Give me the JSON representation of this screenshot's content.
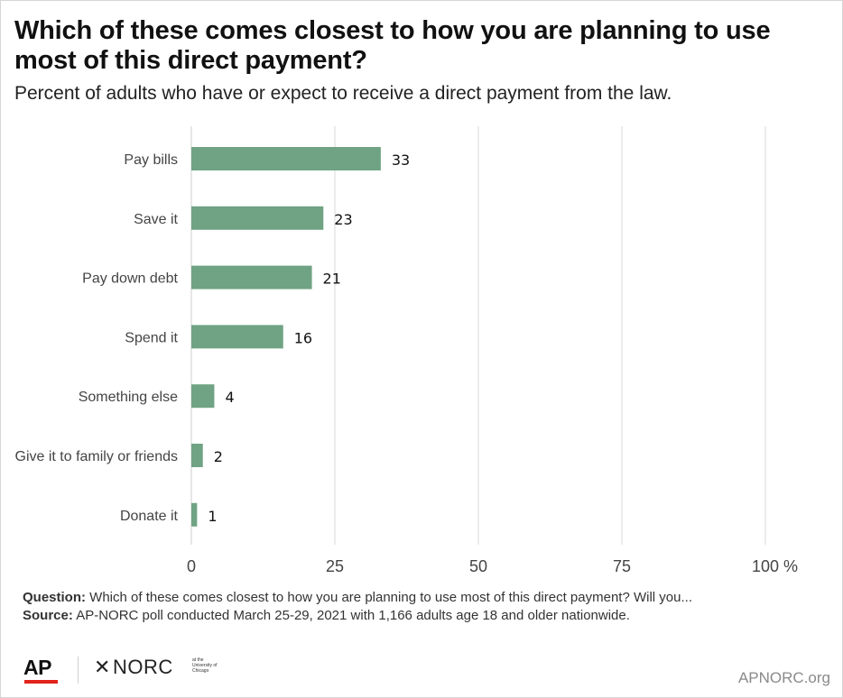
{
  "chart_data": {
    "type": "bar",
    "orientation": "horizontal",
    "title": "Which of these comes closest to how you are planning to use most of this direct payment?",
    "subtitle": "Percent of adults who have or expect to receive a direct payment from the law.",
    "categories": [
      "Pay bills",
      "Save it",
      "Pay down debt",
      "Spend it",
      "Something else",
      "Give it to family or friends",
      "Donate it"
    ],
    "values": [
      33,
      23,
      21,
      16,
      4,
      2,
      1
    ],
    "xlim": [
      0,
      100
    ],
    "x_ticks": [
      "0",
      "25",
      "50",
      "75",
      "100"
    ],
    "x_unit": "%",
    "grid": true,
    "bar_color": "#6fa383"
  },
  "notes": {
    "question_label": "Question:",
    "question_text": "Which of these comes closest to how you are planning to use most of this direct payment? Will you...",
    "source_label": "Source:",
    "source_text": "AP-NORC poll conducted March 25-29, 2021 with 1,166 adults age 18 and older nationwide."
  },
  "footer": {
    "ap_logo": "AP",
    "norc_logo": "NORC",
    "norc_sub": "at the University of Chicago",
    "site": "APNORC.org"
  }
}
